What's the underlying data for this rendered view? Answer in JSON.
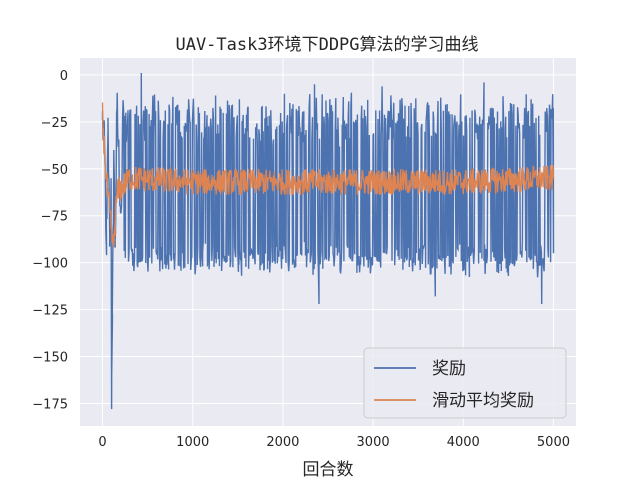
{
  "chart_data": {
    "type": "line",
    "title": "UAV-Task3环境下DDPG算法的学习曲线",
    "xlabel": "回合数",
    "ylabel": "",
    "xlim": [
      -250,
      5250
    ],
    "ylim": [
      -187,
      9
    ],
    "x_ticks": [
      0,
      1000,
      2000,
      3000,
      4000,
      5000
    ],
    "y_ticks": [
      0,
      -25,
      -50,
      -75,
      -100,
      -125,
      -150,
      -175
    ],
    "x_tick_labels": [
      "0",
      "1000",
      "2000",
      "3000",
      "4000",
      "5000"
    ],
    "y_tick_labels": [
      "0",
      "−25",
      "−50",
      "−75",
      "−100",
      "−125",
      "−150",
      "−175"
    ],
    "grid": true,
    "legend_position": "lower-right",
    "series": [
      {
        "name": "奖励",
        "color": "#4c72b0",
        "x_range": [
          0,
          5000
        ],
        "band": {
          "low": -100,
          "high": -25
        },
        "key_points": [
          {
            "x": 0,
            "y": -24
          },
          {
            "x": 25,
            "y": -45
          },
          {
            "x": 45,
            "y": -96
          },
          {
            "x": 60,
            "y": -30
          },
          {
            "x": 80,
            "y": -88
          },
          {
            "x": 95,
            "y": -55
          },
          {
            "x": 100,
            "y": -178
          },
          {
            "x": 110,
            "y": -128
          },
          {
            "x": 125,
            "y": -40
          },
          {
            "x": 140,
            "y": -92
          },
          {
            "x": 160,
            "y": -18
          },
          {
            "x": 200,
            "y": -70
          },
          {
            "x": 430,
            "y": 1
          },
          {
            "x": 1110,
            "y": -102
          },
          {
            "x": 1510,
            "y": -85
          },
          {
            "x": 2350,
            "y": -5
          },
          {
            "x": 2400,
            "y": -122
          },
          {
            "x": 3100,
            "y": -6
          },
          {
            "x": 3690,
            "y": -118
          },
          {
            "x": 4230,
            "y": -4
          },
          {
            "x": 4870,
            "y": -122
          },
          {
            "x": 5000,
            "y": -95
          }
        ]
      },
      {
        "name": "滑动平均奖励",
        "color": "#dd8452",
        "x_range": [
          0,
          5000
        ],
        "key_points": [
          {
            "x": 0,
            "y": -22
          },
          {
            "x": 40,
            "y": -55
          },
          {
            "x": 90,
            "y": -80
          },
          {
            "x": 120,
            "y": -93
          },
          {
            "x": 160,
            "y": -63
          },
          {
            "x": 300,
            "y": -55
          },
          {
            "x": 1000,
            "y": -57
          },
          {
            "x": 2000,
            "y": -57
          },
          {
            "x": 3000,
            "y": -57
          },
          {
            "x": 4000,
            "y": -57
          },
          {
            "x": 5000,
            "y": -55
          }
        ]
      }
    ]
  }
}
